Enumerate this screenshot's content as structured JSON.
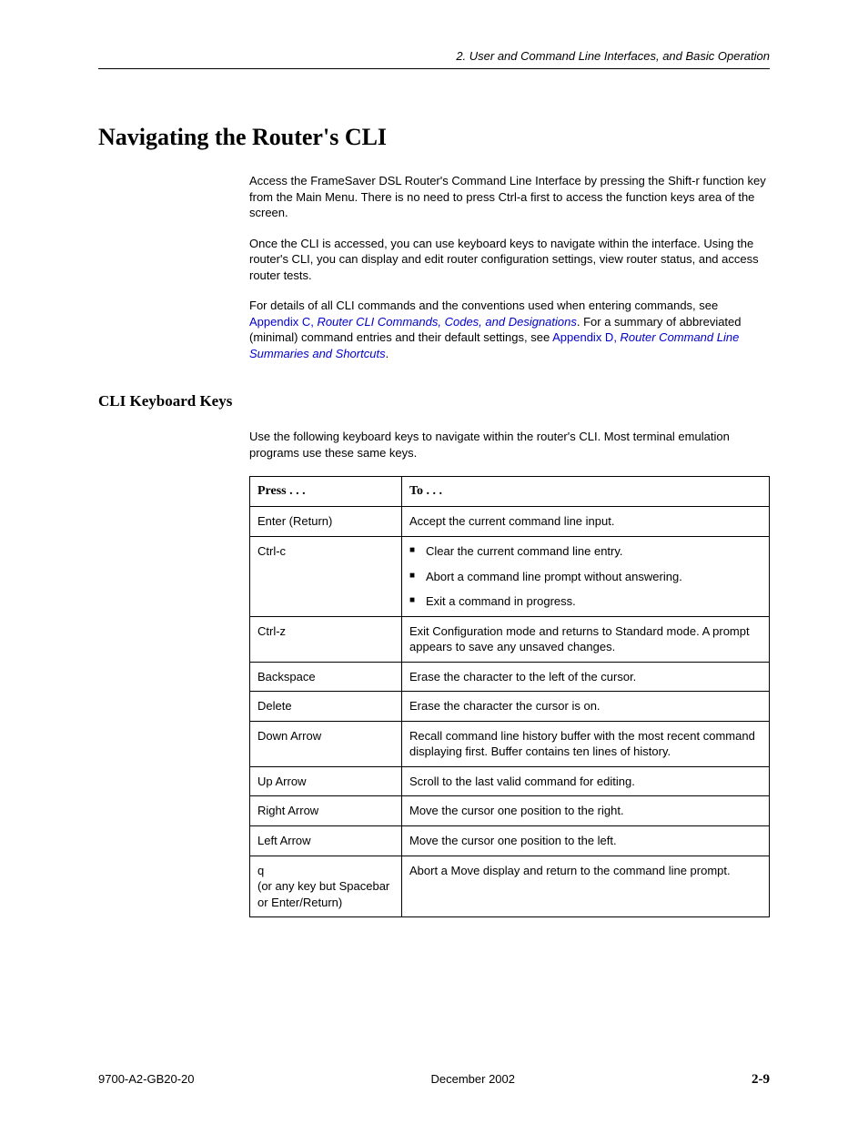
{
  "header": {
    "section_label": "2. User and Command Line Interfaces, and Basic Operation"
  },
  "title": "Navigating the Router's CLI",
  "paragraphs": {
    "p1": "Access the FrameSaver DSL Router's Command Line Interface by pressing the Shift-r function key from the Main Menu. There is no need to press Ctrl-a first to access the function keys area of the screen.",
    "p2": "Once the CLI is accessed, you can use keyboard keys to navigate within the interface. Using the router's CLI, you can display and edit router configuration settings, view router status, and access router tests.",
    "p3_pre": "For details of all CLI commands and the conventions used when entering commands, see ",
    "p3_link1a": "Appendix C, ",
    "p3_link1b": "Router CLI Commands, Codes, and Designations",
    "p3_mid": ". For a summary of abbreviated (minimal) command entries and their default settings, see ",
    "p3_link2a": "Appendix D, ",
    "p3_link2b": "Router Command Line Summaries and Shortcuts",
    "p3_post": "."
  },
  "subheading": "CLI Keyboard Keys",
  "sub_intro": "Use the following keyboard keys to navigate within the router's CLI. Most terminal emulation programs use these same keys.",
  "table": {
    "headers": {
      "press": "Press . . .",
      "to": "To . . ."
    },
    "rows": [
      {
        "press": "Enter (Return)",
        "to": "Accept the current command line input."
      },
      {
        "press": "Ctrl-c",
        "to_list": [
          "Clear the current command line entry.",
          "Abort a command line prompt without answering.",
          "Exit a command in progress."
        ]
      },
      {
        "press": "Ctrl-z",
        "to": "Exit Configuration mode and returns to Standard mode. A prompt appears to save any unsaved changes."
      },
      {
        "press": "Backspace",
        "to": "Erase the character to the left of the cursor."
      },
      {
        "press": "Delete",
        "to": "Erase the character the cursor is on."
      },
      {
        "press": "Down Arrow",
        "to": "Recall command line history buffer with the most recent command displaying first. Buffer contains ten lines of history."
      },
      {
        "press": "Up Arrow",
        "to": "Scroll to the last valid command for editing."
      },
      {
        "press": "Right Arrow",
        "to": "Move the cursor one position to the right."
      },
      {
        "press": "Left Arrow",
        "to": "Move the cursor one position to the left."
      },
      {
        "press": "q\n(or any key but Spacebar or Enter/Return)",
        "to": "Abort a Move display and return to the command line prompt."
      }
    ]
  },
  "footer": {
    "doc_id": "9700-A2-GB20-20",
    "date": "December 2002",
    "page": "2-9"
  }
}
